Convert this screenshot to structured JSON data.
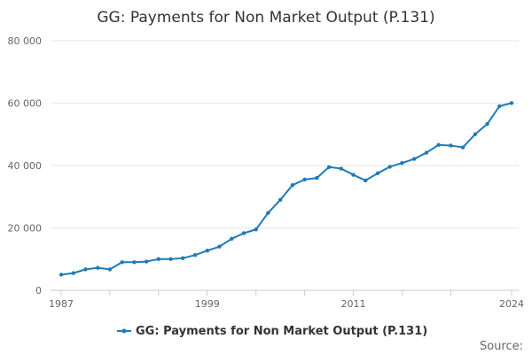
{
  "chart_data": {
    "type": "line",
    "title": "GG: Payments for Non Market Output (P.131)",
    "xlabel": "",
    "ylabel": "",
    "ylim": [
      0,
      80000
    ],
    "yticks": [
      0,
      20000,
      40000,
      60000,
      80000
    ],
    "ytick_labels": [
      "0",
      "20 000",
      "40 000",
      "60 000",
      "80 000"
    ],
    "xlim": [
      1987,
      2024
    ],
    "xticks": [
      1987,
      1999,
      2011,
      2024
    ],
    "xtick_labels": [
      "1987",
      "1999",
      "2011",
      "2024"
    ],
    "grid": true,
    "legend_position": "bottom",
    "colors": {
      "series": "#1f7ab8",
      "grid": "#e6e6e6",
      "axis": "#cccccc"
    },
    "series": [
      {
        "name": "GG: Payments for Non Market Output (P.131)",
        "x": [
          1987,
          1988,
          1989,
          1990,
          1991,
          1992,
          1993,
          1994,
          1995,
          1996,
          1997,
          1998,
          1999,
          2000,
          2001,
          2002,
          2003,
          2004,
          2005,
          2006,
          2007,
          2008,
          2009,
          2010,
          2011,
          2012,
          2013,
          2014,
          2015,
          2016,
          2017,
          2018,
          2019,
          2020,
          2021,
          2022,
          2023,
          2024
        ],
        "values": [
          5000,
          5500,
          6700,
          7200,
          6700,
          9000,
          9000,
          9200,
          10000,
          10000,
          10300,
          11300,
          12700,
          14000,
          16500,
          18300,
          19500,
          24800,
          29000,
          33700,
          35500,
          36000,
          39500,
          39000,
          37000,
          35200,
          37500,
          39600,
          40800,
          42100,
          44100,
          46600,
          46400,
          45800,
          50000,
          53300,
          59000,
          60000
        ]
      }
    ]
  },
  "footer": {
    "source_label": "Source:"
  }
}
